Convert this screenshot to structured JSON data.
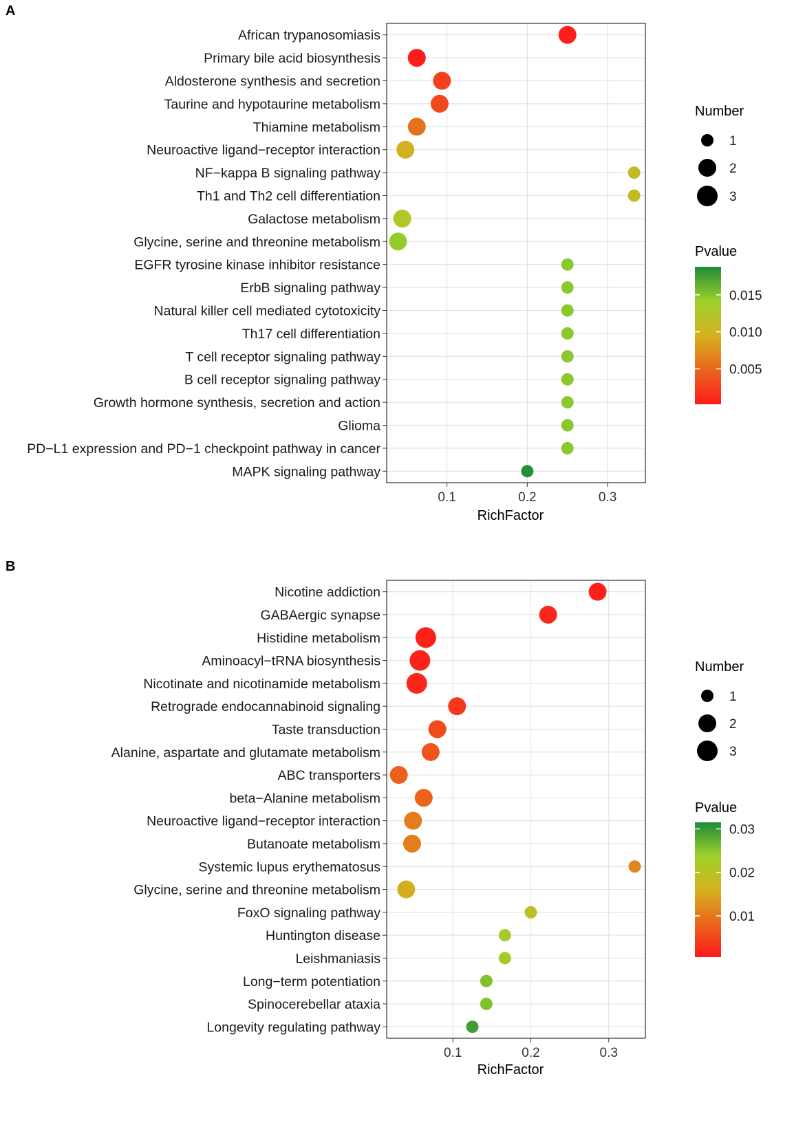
{
  "chart_data": [
    {
      "type": "scatter",
      "panel_label": "A",
      "xlabel": "RichFactor",
      "xlim": [
        0.025,
        0.347
      ],
      "xticks": [
        0.1,
        0.2,
        0.3
      ],
      "xtick_labels": [
        "0.1",
        "0.2",
        "0.3"
      ],
      "grid": true,
      "size_legend_title": "Number",
      "size_legend": [
        {
          "label": "1",
          "value": 1
        },
        {
          "label": "2",
          "value": 2
        },
        {
          "label": "3",
          "value": 3
        }
      ],
      "color_legend_title": "Pvalue",
      "color_range": [
        0.0002,
        0.0188
      ],
      "color_ticks": [
        0.005,
        0.01,
        0.015
      ],
      "color_tick_labels": [
        "0.005",
        "0.010",
        "0.015"
      ],
      "categories": [
        "African trypanosomiasis",
        "Primary bile acid biosynthesis",
        "Aldosterone synthesis and secretion",
        "Taurine and hypotaurine metabolism",
        "Thiamine metabolism",
        "Neuroactive ligand−receptor interaction",
        "NF−kappa B signaling pathway",
        "Th1 and Th2 cell differentiation",
        "Galactose metabolism",
        "Glycine, serine and threonine metabolism",
        "EGFR tyrosine kinase inhibitor resistance",
        "ErbB signaling pathway",
        "Natural killer cell mediated cytotoxicity",
        "Th17 cell differentiation",
        "T cell receptor signaling pathway",
        "B cell receptor signaling pathway",
        "Growth hormone synthesis, secretion and action",
        "Glioma",
        "PD−L1 expression and PD−1 checkpoint pathway in cancer",
        "MAPK signaling pathway"
      ],
      "rich_factor": [
        0.25,
        0.0625,
        0.0938,
        0.0909,
        0.0625,
        0.0483,
        0.333,
        0.333,
        0.0444,
        0.0392,
        0.25,
        0.25,
        0.25,
        0.25,
        0.25,
        0.25,
        0.25,
        0.25,
        0.25,
        0.2
      ],
      "number": [
        2,
        2,
        2,
        2,
        2,
        2,
        1,
        1,
        2,
        2,
        1,
        1,
        1,
        1,
        1,
        1,
        1,
        1,
        1,
        1
      ],
      "pvalue": [
        0.0005,
        0.0004,
        0.0025,
        0.003,
        0.0055,
        0.0095,
        0.011,
        0.011,
        0.0125,
        0.0145,
        0.0148,
        0.0148,
        0.0148,
        0.0148,
        0.0148,
        0.0148,
        0.0148,
        0.0148,
        0.0148,
        0.0185
      ]
    },
    {
      "type": "scatter",
      "panel_label": "B",
      "xlabel": "RichFactor",
      "xlim": [
        0.015,
        0.347
      ],
      "xticks": [
        0.1,
        0.2,
        0.3
      ],
      "xtick_labels": [
        "0.1",
        "0.2",
        "0.3"
      ],
      "grid": true,
      "size_legend_title": "Number",
      "size_legend": [
        {
          "label": "1",
          "value": 1
        },
        {
          "label": "2",
          "value": 2
        },
        {
          "label": "3",
          "value": 3
        }
      ],
      "color_legend_title": "Pvalue",
      "color_range": [
        0.0005,
        0.0315
      ],
      "color_ticks": [
        0.01,
        0.02,
        0.03
      ],
      "color_tick_labels": [
        "0.01",
        "0.02",
        "0.03"
      ],
      "categories": [
        "Nicotine addiction",
        "GABAergic synapse",
        "Histidine metabolism",
        "Aminoacyl−tRNA biosynthesis",
        "Nicotinate and nicotinamide metabolism",
        "Retrograde endocannabinoid signaling",
        "Taste transduction",
        "Alanine, aspartate and glutamate metabolism",
        "ABC transporters",
        "beta−Alanine metabolism",
        "Neuroactive ligand−receptor interaction",
        "Butanoate metabolism",
        "Systemic lupus erythematosus",
        "Glycine, serine and threonine metabolism",
        "FoxO signaling pathway",
        "Huntington disease",
        "Leishmaniasis",
        "Long−term potentiation",
        "Spinocerebellar ataxia",
        "Longevity regulating pathway"
      ],
      "rich_factor": [
        0.2857,
        0.2222,
        0.0652,
        0.0577,
        0.0536,
        0.1053,
        0.08,
        0.0714,
        0.0306,
        0.0625,
        0.0488,
        0.0476,
        0.3333,
        0.04,
        0.2,
        0.1667,
        0.1667,
        0.1429,
        0.1429,
        0.125
      ],
      "number": [
        2,
        2,
        3,
        3,
        3,
        2,
        2,
        2,
        2,
        2,
        2,
        2,
        1,
        2,
        1,
        1,
        1,
        1,
        1,
        1
      ],
      "pvalue": [
        0.0012,
        0.0018,
        0.0012,
        0.0015,
        0.0018,
        0.0035,
        0.0055,
        0.0065,
        0.0075,
        0.008,
        0.0105,
        0.0108,
        0.0115,
        0.0155,
        0.0195,
        0.0225,
        0.0225,
        0.0255,
        0.0255,
        0.0295
      ]
    }
  ]
}
